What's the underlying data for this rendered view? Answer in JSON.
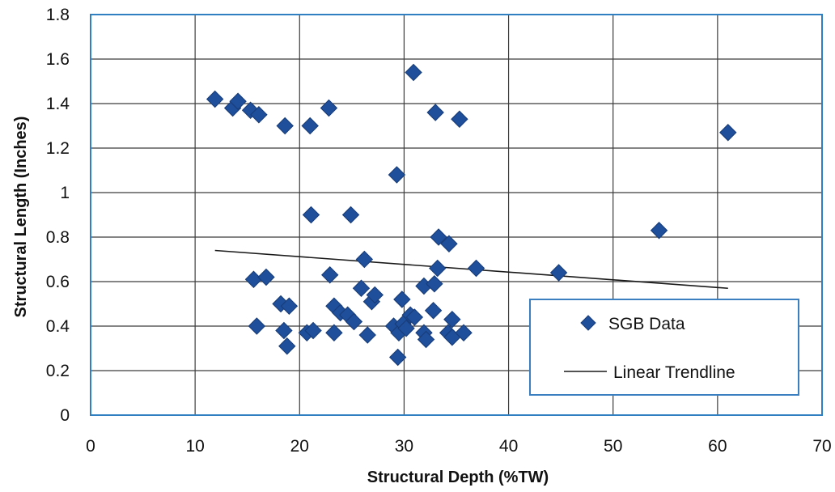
{
  "colors": {
    "plot_border": "#2f7fc1",
    "grid": "#3c3c3c",
    "marker": "#1f4e9a",
    "marker_edge": "#173c78",
    "trendline": "#1a1a1a",
    "legend_border": "#3c7fc0"
  },
  "chart_data": {
    "type": "scatter",
    "title": "",
    "xlabel": "Structural Depth (%TW)",
    "ylabel": "Structural Length (Inches)",
    "xlim": [
      0,
      70
    ],
    "ylim": [
      0,
      1.8
    ],
    "x_ticks": [
      0,
      10,
      20,
      30,
      40,
      50,
      60,
      70
    ],
    "y_ticks": [
      0,
      0.2,
      0.4,
      0.6,
      0.8,
      1,
      1.2,
      1.4,
      1.6,
      1.8
    ],
    "x_tick_labels": [
      "0",
      "10",
      "20",
      "30",
      "40",
      "50",
      "60",
      "70"
    ],
    "y_tick_labels": [
      "0",
      "0.2",
      "0.4",
      "0.6",
      "0.8",
      "1",
      "1.2",
      "1.4",
      "1.6",
      "1.8"
    ],
    "grid": true,
    "legend_position": "bottom-right",
    "series": [
      {
        "name": "SGB Data",
        "marker": "diamond",
        "points": [
          {
            "x": 11.9,
            "y": 1.42
          },
          {
            "x": 13.6,
            "y": 1.38
          },
          {
            "x": 14.1,
            "y": 1.41
          },
          {
            "x": 15.3,
            "y": 1.37
          },
          {
            "x": 16.1,
            "y": 1.35
          },
          {
            "x": 18.6,
            "y": 1.3
          },
          {
            "x": 21.0,
            "y": 1.3
          },
          {
            "x": 22.8,
            "y": 1.38
          },
          {
            "x": 30.9,
            "y": 1.54
          },
          {
            "x": 33.0,
            "y": 1.36
          },
          {
            "x": 35.3,
            "y": 1.33
          },
          {
            "x": 61.0,
            "y": 1.27
          },
          {
            "x": 29.3,
            "y": 1.08
          },
          {
            "x": 21.1,
            "y": 0.9
          },
          {
            "x": 24.9,
            "y": 0.9
          },
          {
            "x": 33.3,
            "y": 0.8
          },
          {
            "x": 34.3,
            "y": 0.77
          },
          {
            "x": 54.4,
            "y": 0.83
          },
          {
            "x": 26.2,
            "y": 0.7
          },
          {
            "x": 33.2,
            "y": 0.66
          },
          {
            "x": 36.9,
            "y": 0.66
          },
          {
            "x": 44.8,
            "y": 0.64
          },
          {
            "x": 15.6,
            "y": 0.61
          },
          {
            "x": 16.8,
            "y": 0.62
          },
          {
            "x": 22.9,
            "y": 0.63
          },
          {
            "x": 25.9,
            "y": 0.57
          },
          {
            "x": 26.9,
            "y": 0.51
          },
          {
            "x": 27.2,
            "y": 0.54
          },
          {
            "x": 31.9,
            "y": 0.58
          },
          {
            "x": 32.9,
            "y": 0.59
          },
          {
            "x": 18.2,
            "y": 0.5
          },
          {
            "x": 19.0,
            "y": 0.49
          },
          {
            "x": 23.3,
            "y": 0.49
          },
          {
            "x": 23.9,
            "y": 0.46
          },
          {
            "x": 24.6,
            "y": 0.45
          },
          {
            "x": 25.2,
            "y": 0.42
          },
          {
            "x": 29.8,
            "y": 0.52
          },
          {
            "x": 30.6,
            "y": 0.45
          },
          {
            "x": 31.0,
            "y": 0.44
          },
          {
            "x": 32.8,
            "y": 0.47
          },
          {
            "x": 34.6,
            "y": 0.43
          },
          {
            "x": 15.9,
            "y": 0.4
          },
          {
            "x": 18.5,
            "y": 0.38
          },
          {
            "x": 18.8,
            "y": 0.31
          },
          {
            "x": 20.7,
            "y": 0.37
          },
          {
            "x": 21.3,
            "y": 0.38
          },
          {
            "x": 23.3,
            "y": 0.37
          },
          {
            "x": 26.5,
            "y": 0.36
          },
          {
            "x": 29.0,
            "y": 0.4
          },
          {
            "x": 29.5,
            "y": 0.37
          },
          {
            "x": 29.9,
            "y": 0.41
          },
          {
            "x": 30.2,
            "y": 0.39
          },
          {
            "x": 31.9,
            "y": 0.37
          },
          {
            "x": 32.1,
            "y": 0.34
          },
          {
            "x": 34.2,
            "y": 0.37
          },
          {
            "x": 34.6,
            "y": 0.35
          },
          {
            "x": 35.7,
            "y": 0.37
          },
          {
            "x": 29.4,
            "y": 0.26
          }
        ]
      },
      {
        "name": "Linear Trendline",
        "type": "line",
        "points": [
          {
            "x": 11.9,
            "y": 0.74
          },
          {
            "x": 61.0,
            "y": 0.57
          }
        ]
      }
    ]
  }
}
